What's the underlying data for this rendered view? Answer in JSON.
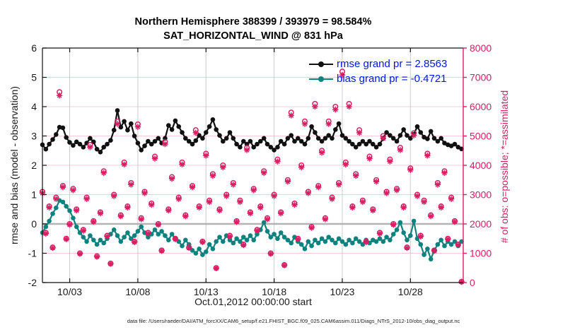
{
  "title": {
    "line1": "Northern Hemisphere 388399 / 393979 = 98.584%",
    "line2": "SAT_HORIZONTAL_WIND @ 831 hPa"
  },
  "legend": [
    {
      "label": "rmse grand pr = 2.8563",
      "color": "#111111"
    },
    {
      "label": "bias grand pr = -0.4721",
      "color": "#0e827e"
    }
  ],
  "annotation": "data file: /Users/raeder/DAI/ATM_forcXX/CAM6_setup/f.e21.FHIST_BGC.f09_025.CAM6assim.011/Diags_NTrS_2012-10/obs_diag_output.nc",
  "colors": {
    "pink": "#d91e63",
    "teal": "#0e827e",
    "black": "#111111",
    "legend_text": "#0414ef",
    "grid_gray": "#cccccc",
    "grid_pink": "#f5cadb",
    "zero_line": "#b3b3b3",
    "tick_text": "#1a1a1a",
    "background": "#ffffff"
  },
  "chart_data": {
    "type": "line",
    "title": "Northern Hemisphere 388399 / 393979 = 98.584% | SAT_HORIZONTAL_WIND @ 831 hPa",
    "xlabel": "Oct.01,2012 00:00:00 start",
    "x_start_day": 0,
    "x_step_days": 0.25,
    "xlim_days": [
      0,
      30.875
    ],
    "x_tick_days": [
      2,
      7,
      12,
      17,
      22,
      27
    ],
    "x_tick_labels": [
      "10/03",
      "10/08",
      "10/13",
      "10/18",
      "10/23",
      "10/28"
    ],
    "grid": "on",
    "legend_position": "top-right-inside",
    "left_axis": {
      "label": "rmse and bias (model - observation)",
      "lim": [
        -2,
        6
      ],
      "ticks": [
        -2,
        -1,
        0,
        1,
        2,
        3,
        4,
        5,
        6
      ]
    },
    "right_axis": {
      "label": "# of obs: o=possible; *=assimilated",
      "lim": [
        0,
        8000
      ],
      "ticks": [
        0,
        1000,
        2000,
        3000,
        4000,
        5000,
        6000,
        7000,
        8000
      ]
    },
    "series": [
      {
        "name": "rmse",
        "type": "line",
        "axis": "left",
        "marker": "dot",
        "color": "#111111",
        "grand_mean": 2.8563,
        "values": [
          2.7,
          2.55,
          2.72,
          2.88,
          3.05,
          3.3,
          3.28,
          2.95,
          2.78,
          2.68,
          2.8,
          2.72,
          2.62,
          2.76,
          2.92,
          2.8,
          2.55,
          2.45,
          2.62,
          2.72,
          2.85,
          3.2,
          3.87,
          3.3,
          3.5,
          3.2,
          3.42,
          3.0,
          2.76,
          2.52,
          2.66,
          2.82,
          2.72,
          2.82,
          2.92,
          2.76,
          2.92,
          3.36,
          3.22,
          3.52,
          3.32,
          3.12,
          2.92,
          2.82,
          2.72,
          2.84,
          3.02,
          2.92,
          3.12,
          3.32,
          3.56,
          3.22,
          3.02,
          2.82,
          2.92,
          3.12,
          2.92,
          2.72,
          2.62,
          2.82,
          2.72,
          2.82,
          2.62,
          2.72,
          2.82,
          2.92,
          2.72,
          2.62,
          2.52,
          2.62,
          2.82,
          2.72,
          2.92,
          3.02,
          2.82,
          2.92,
          2.82,
          2.72,
          2.92,
          3.32,
          3.12,
          2.92,
          2.82,
          2.92,
          3.02,
          2.92,
          3.22,
          3.42,
          3.02,
          2.92,
          2.82,
          2.72,
          2.62,
          2.72,
          2.82,
          2.72,
          2.82,
          2.72,
          2.62,
          2.72,
          2.92,
          3.12,
          3.02,
          2.92,
          2.82,
          3.02,
          3.22,
          3.02,
          2.92,
          3.06,
          3.32,
          3.12,
          2.96,
          2.9,
          3.16,
          2.92,
          2.82,
          2.92,
          2.76,
          2.7,
          2.66,
          2.72,
          2.62,
          2.56
        ]
      },
      {
        "name": "bias",
        "type": "line",
        "axis": "left",
        "marker": "dot",
        "color": "#0e827e",
        "grand_mean": -0.4721,
        "values": [
          -0.3,
          -0.1,
          0.1,
          0.35,
          0.55,
          0.8,
          0.75,
          0.6,
          0.45,
          0.2,
          -0.1,
          -0.3,
          -0.45,
          -0.6,
          -0.4,
          -0.55,
          -0.7,
          -0.55,
          -0.65,
          -0.5,
          -0.35,
          -0.2,
          -0.4,
          -0.6,
          -0.45,
          -0.3,
          -0.5,
          -0.4,
          -0.25,
          -0.1,
          -0.3,
          -0.45,
          -0.35,
          -0.2,
          -0.35,
          -0.25,
          -0.4,
          -0.55,
          -0.35,
          -0.5,
          -0.6,
          -0.75,
          -0.55,
          -0.7,
          -0.9,
          -1.0,
          -0.85,
          -1.05,
          -0.95,
          -0.7,
          -0.85,
          -0.6,
          -0.45,
          -0.6,
          -0.4,
          -0.55,
          -0.65,
          -0.5,
          -0.6,
          -0.45,
          -0.55,
          -0.4,
          -0.55,
          -0.35,
          -0.2,
          0.05,
          -0.25,
          -0.45,
          -0.35,
          -0.5,
          -0.3,
          -0.45,
          -0.55,
          -0.65,
          -0.45,
          -0.6,
          -0.7,
          -0.85,
          -0.6,
          -0.75,
          -0.55,
          -0.65,
          -0.5,
          -0.6,
          -0.45,
          -0.55,
          -0.65,
          -0.5,
          -0.6,
          -0.7,
          -0.55,
          -0.65,
          -0.5,
          -0.6,
          -0.7,
          -0.55,
          -0.65,
          -0.55,
          -0.6,
          -0.5,
          -0.6,
          -0.45,
          -0.55,
          -0.35,
          -0.2,
          0.05,
          -0.3,
          -0.55,
          -0.4,
          0.1,
          -0.5,
          -0.7,
          -1.05,
          -0.85,
          -1.2,
          -0.9,
          -0.7,
          -0.55,
          -0.75,
          -0.6,
          -0.7,
          -0.6,
          -0.75,
          -0.6
        ]
      },
      {
        "name": "possible",
        "type": "scatter",
        "axis": "right",
        "marker": "circle",
        "color": "#d91e63",
        "total": 393979,
        "values": [
          3100,
          1700,
          2600,
          1200,
          2900,
          6500,
          3300,
          1500,
          2000,
          3200,
          2500,
          1000,
          1800,
          2900,
          4700,
          2100,
          900,
          2400,
          3800,
          1600,
          650,
          3000,
          5500,
          2300,
          4100,
          2600,
          3400,
          1400,
          5400,
          2200,
          3100,
          1700,
          2700,
          4300,
          2000,
          1100,
          4800,
          2500,
          3600,
          1500,
          2900,
          4100,
          2300,
          1200,
          3300,
          5200,
          2600,
          1400,
          4400,
          2800,
          3700,
          500,
          2500,
          4000,
          3000,
          1600,
          3400,
          2100,
          2800,
          1300,
          4600,
          2400,
          3200,
          1800,
          2600,
          3800,
          2200,
          1000,
          3000,
          4200,
          2400,
          600,
          3500,
          5800,
          2700,
          1500,
          4000,
          5500,
          3100,
          1900,
          6100,
          3300,
          4500,
          2200,
          5500,
          2900,
          6000,
          3400,
          7200,
          4100,
          6100,
          2600,
          3700,
          5200,
          2800,
          1400,
          4300,
          2500,
          3500,
          1700,
          5000,
          3100,
          4200,
          2000,
          3200,
          4600,
          2600,
          1200,
          3900,
          5100,
          3000,
          1600,
          2800,
          4400,
          2300,
          1100,
          3400,
          2600,
          3800,
          1500,
          2900,
          2100,
          1300,
          30
        ]
      },
      {
        "name": "assimilated",
        "type": "scatter",
        "axis": "right",
        "marker": "asterisk",
        "color": "#d91e63",
        "total": 388399,
        "values": [
          3050,
          1670,
          2560,
          1180,
          2850,
          6380,
          3250,
          1480,
          1970,
          3150,
          2460,
          980,
          1770,
          2850,
          4620,
          2070,
          880,
          2360,
          3740,
          1570,
          640,
          2950,
          5410,
          2260,
          4030,
          2560,
          3340,
          1380,
          5310,
          2160,
          3050,
          1670,
          2650,
          4230,
          1970,
          1080,
          4720,
          2460,
          3540,
          1480,
          2850,
          4030,
          2260,
          1180,
          3250,
          5110,
          2560,
          1380,
          4330,
          2750,
          3640,
          490,
          2460,
          3930,
          2950,
          1570,
          3340,
          2070,
          2750,
          1280,
          4520,
          2360,
          3150,
          1770,
          2560,
          3740,
          2160,
          980,
          2950,
          4130,
          2360,
          590,
          3440,
          5700,
          2650,
          1480,
          3930,
          5410,
          3050,
          1870,
          6000,
          3250,
          4430,
          2160,
          5410,
          2850,
          5900,
          3340,
          7080,
          4030,
          6000,
          2560,
          3640,
          5110,
          2750,
          1380,
          4230,
          2460,
          3440,
          1670,
          4920,
          3050,
          4130,
          1970,
          3150,
          4520,
          2560,
          1180,
          3840,
          5020,
          2950,
          1570,
          2750,
          4330,
          2260,
          1080,
          3340,
          2560,
          3740,
          1480,
          2850,
          2070,
          1280,
          25
        ]
      }
    ]
  }
}
